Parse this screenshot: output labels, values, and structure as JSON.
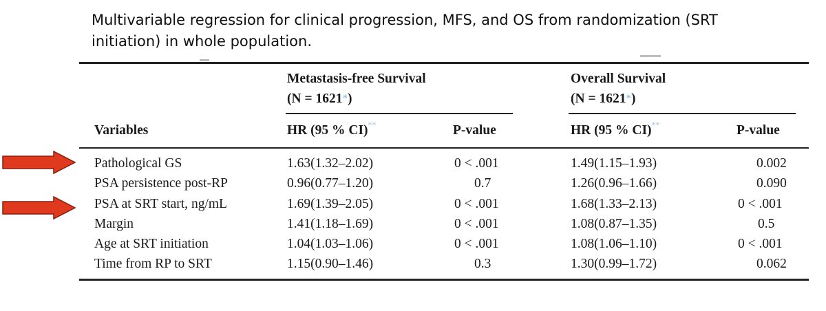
{
  "caption": {
    "line1": "Multivariable regression for clinical progression, MFS, and OS from randomization (SRT",
    "line2": "initiation) in whole population."
  },
  "table": {
    "group_mfs": {
      "title": "Metastasis-free Survival",
      "n": "(N = 1621",
      "n_mark": "*",
      "n_close": ")"
    },
    "group_os": {
      "title": "Overall Survival",
      "n": "(N = 1621",
      "n_mark": "*",
      "n_close": ")"
    },
    "columns": {
      "variables": "Variables",
      "hr": "HR (95 % CI)",
      "hr_mark": "**",
      "pvalue": "P-value"
    },
    "rows": [
      {
        "variable": "Pathological GS",
        "mfs_hr": "1.63(1.32–2.02)",
        "mfs_p": "0 < .001",
        "os_hr": "1.49(1.15–1.93)",
        "os_p": "0.002",
        "highlighted": true
      },
      {
        "variable": "PSA persistence post-RP",
        "mfs_hr": "0.96(0.77–1.20)",
        "mfs_p": "0.7",
        "os_hr": "1.26(0.96–1.66)",
        "os_p": "0.090",
        "highlighted": false
      },
      {
        "variable": "PSA at SRT start, ng/mL",
        "mfs_hr": "1.69(1.39–2.05)",
        "mfs_p": "0 < .001",
        "os_hr": "1.68(1.33–2.13)",
        "os_p": "0 < .001",
        "highlighted": true
      },
      {
        "variable": "Margin",
        "mfs_hr": "1.41(1.18–1.69)",
        "mfs_p": "0 < .001",
        "os_hr": "1.08(0.87–1.35)",
        "os_p": "0.5",
        "highlighted": false
      },
      {
        "variable": "Age at SRT initiation",
        "mfs_hr": "1.04(1.03–1.06)",
        "mfs_p": "0 < .001",
        "os_hr": "1.08(1.06–1.10)",
        "os_p": "0 < .001",
        "highlighted": false
      },
      {
        "variable": "Time from RP to SRT",
        "mfs_hr": "1.15(0.90–1.46)",
        "mfs_p": "0.3",
        "os_hr": "1.30(0.99–1.72)",
        "os_p": "0.062",
        "highlighted": false
      }
    ]
  },
  "colors": {
    "arrow_fill": "#e03a1e",
    "arrow_stroke": "#8a1a0c",
    "rule": "#222222",
    "footnote_mark": "#7fb0d8"
  }
}
